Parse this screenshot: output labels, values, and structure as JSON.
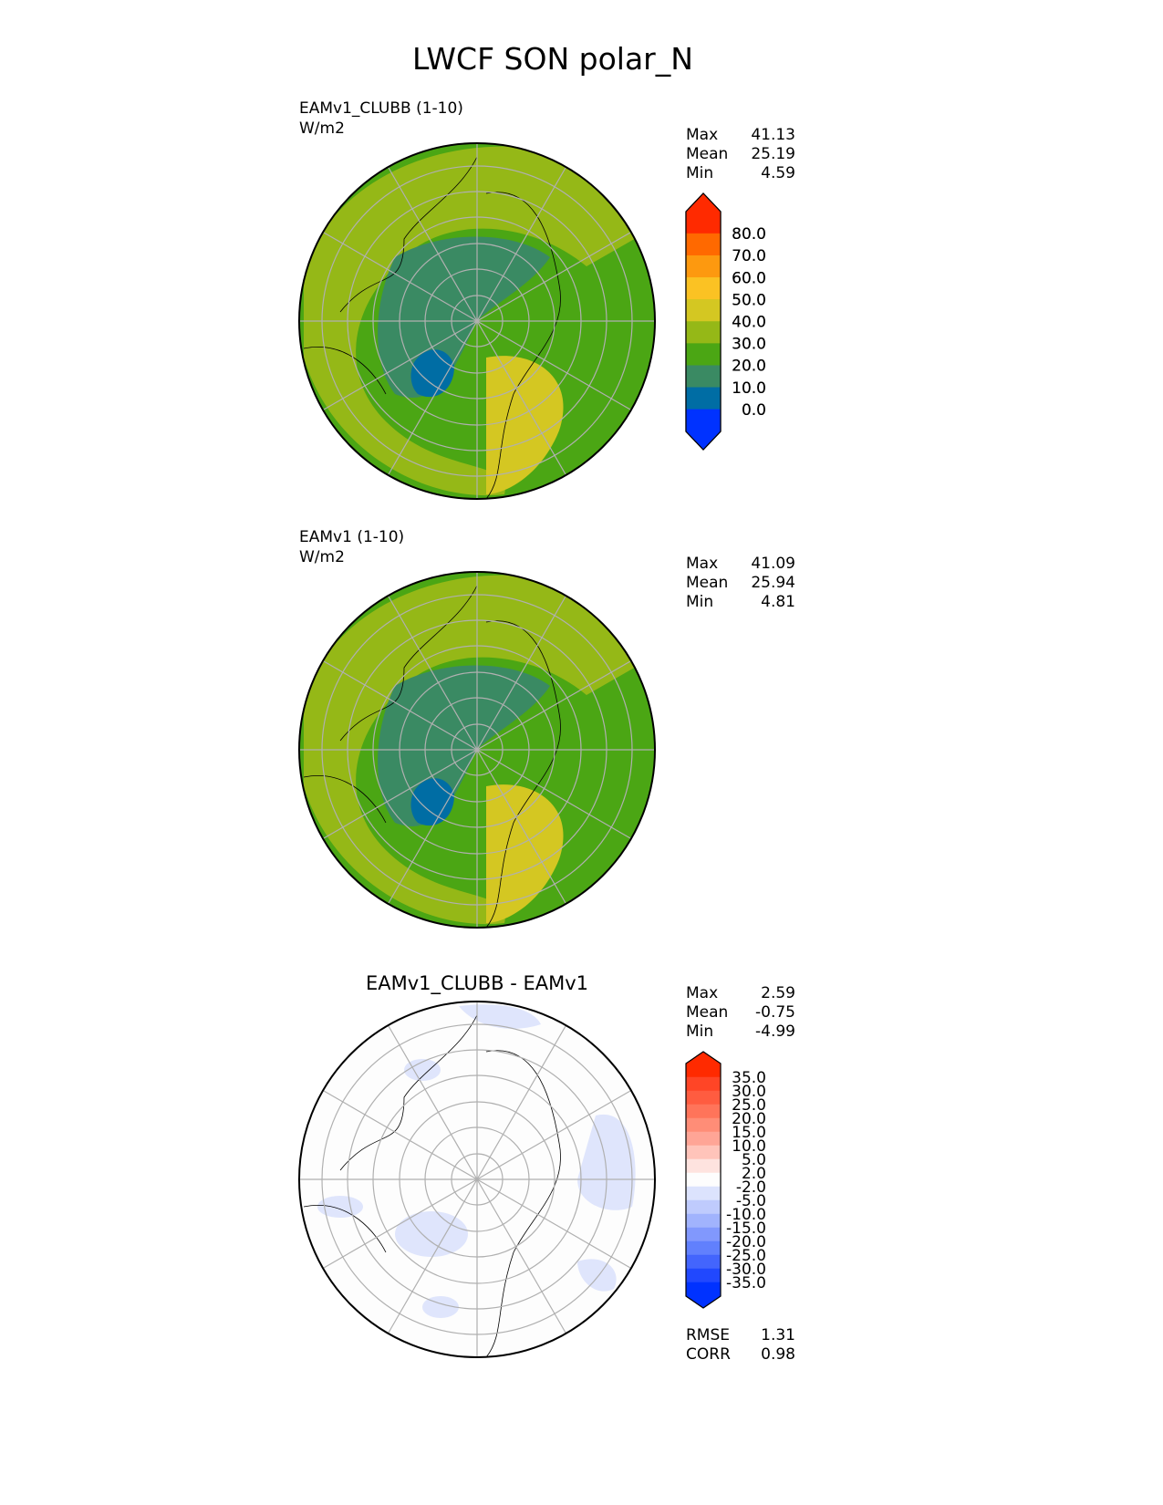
{
  "title": "LWCF SON polar_N",
  "panels": [
    {
      "title": "EAMv1_CLUBB (1-10)",
      "units": "W/m2",
      "stats": [
        {
          "label": "Max",
          "value": "41.13"
        },
        {
          "label": "Mean",
          "value": "25.19"
        },
        {
          "label": "Min",
          "value": "4.59"
        }
      ],
      "fill": "#4ba614",
      "blobs": [
        "#95b817",
        "#3a8a63",
        "#006da4",
        "#d4c722"
      ]
    },
    {
      "title": "EAMv1 (1-10)",
      "units": "W/m2",
      "stats": [
        {
          "label": "Max",
          "value": "41.09"
        },
        {
          "label": "Mean",
          "value": "25.94"
        },
        {
          "label": "Min",
          "value": "4.81"
        }
      ],
      "fill": "#4ba614",
      "blobs": [
        "#95b817",
        "#3a8a63",
        "#006da4",
        "#d4c722"
      ]
    },
    {
      "title": "EAMv1_CLUBB - EAMv1",
      "stats": [
        {
          "label": "Max",
          "value": "2.59"
        },
        {
          "label": "Mean",
          "value": "-0.75"
        },
        {
          "label": "Min",
          "value": "-4.99"
        }
      ],
      "extra_stats": [
        {
          "label": "RMSE",
          "value": "1.31"
        },
        {
          "label": "CORR",
          "value": "0.98"
        }
      ],
      "fill": "#fdfdfd",
      "blobs": [
        "#dfe5fc",
        "#dfe5fc",
        "#dfe5fc",
        "#fcd9d2"
      ]
    }
  ],
  "colorbars": {
    "field": {
      "labels": [
        "80.0",
        "70.0",
        "60.0",
        "50.0",
        "40.0",
        "30.0",
        "20.0",
        "10.0",
        "0.0"
      ],
      "colors": [
        "#ff2a00",
        "#ff6900",
        "#fd990f",
        "#fbc223",
        "#d4c722",
        "#95b817",
        "#4ba614",
        "#3a8a63",
        "#006da4",
        "#0032ff"
      ]
    },
    "diff": {
      "labels": [
        "35.0",
        "30.0",
        "25.0",
        "20.0",
        "15.0",
        "10.0",
        "5.0",
        "2.0",
        "-2.0",
        "-5.0",
        "-10.0",
        "-15.0",
        "-20.0",
        "-25.0",
        "-30.0",
        "-35.0"
      ],
      "colors": [
        "#ff2a00",
        "#ff4526",
        "#ff5c40",
        "#ff745a",
        "#ff8d77",
        "#ffa596",
        "#ffc4ba",
        "#fee3df",
        "#fdfdfd",
        "#dce3fd",
        "#bfcbfd",
        "#a1b3fd",
        "#8198fd",
        "#6180fd",
        "#4365fd",
        "#2148fe",
        "#0032ff"
      ]
    }
  }
}
